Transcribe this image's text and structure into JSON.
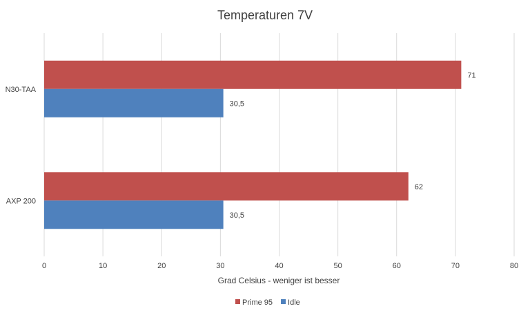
{
  "chart_data": {
    "type": "bar",
    "orientation": "horizontal",
    "title": "Temperaturen 7V",
    "xlabel": "Grad Celsius - weniger ist besser",
    "ylabel": "",
    "categories": [
      "N30-TAA",
      "AXP 200"
    ],
    "series": [
      {
        "name": "Prime 95",
        "values": [
          71,
          62
        ],
        "labels": [
          "71",
          "62"
        ],
        "color": "#c0504d"
      },
      {
        "name": "Idle",
        "values": [
          30.5,
          30.5
        ],
        "labels": [
          "30,5",
          "30,5"
        ],
        "color": "#4f81bd"
      }
    ],
    "xlim": [
      0,
      80
    ],
    "xticks": [
      0,
      10,
      20,
      30,
      40,
      50,
      60,
      70,
      80
    ],
    "grid": true,
    "legend": "bottom"
  }
}
